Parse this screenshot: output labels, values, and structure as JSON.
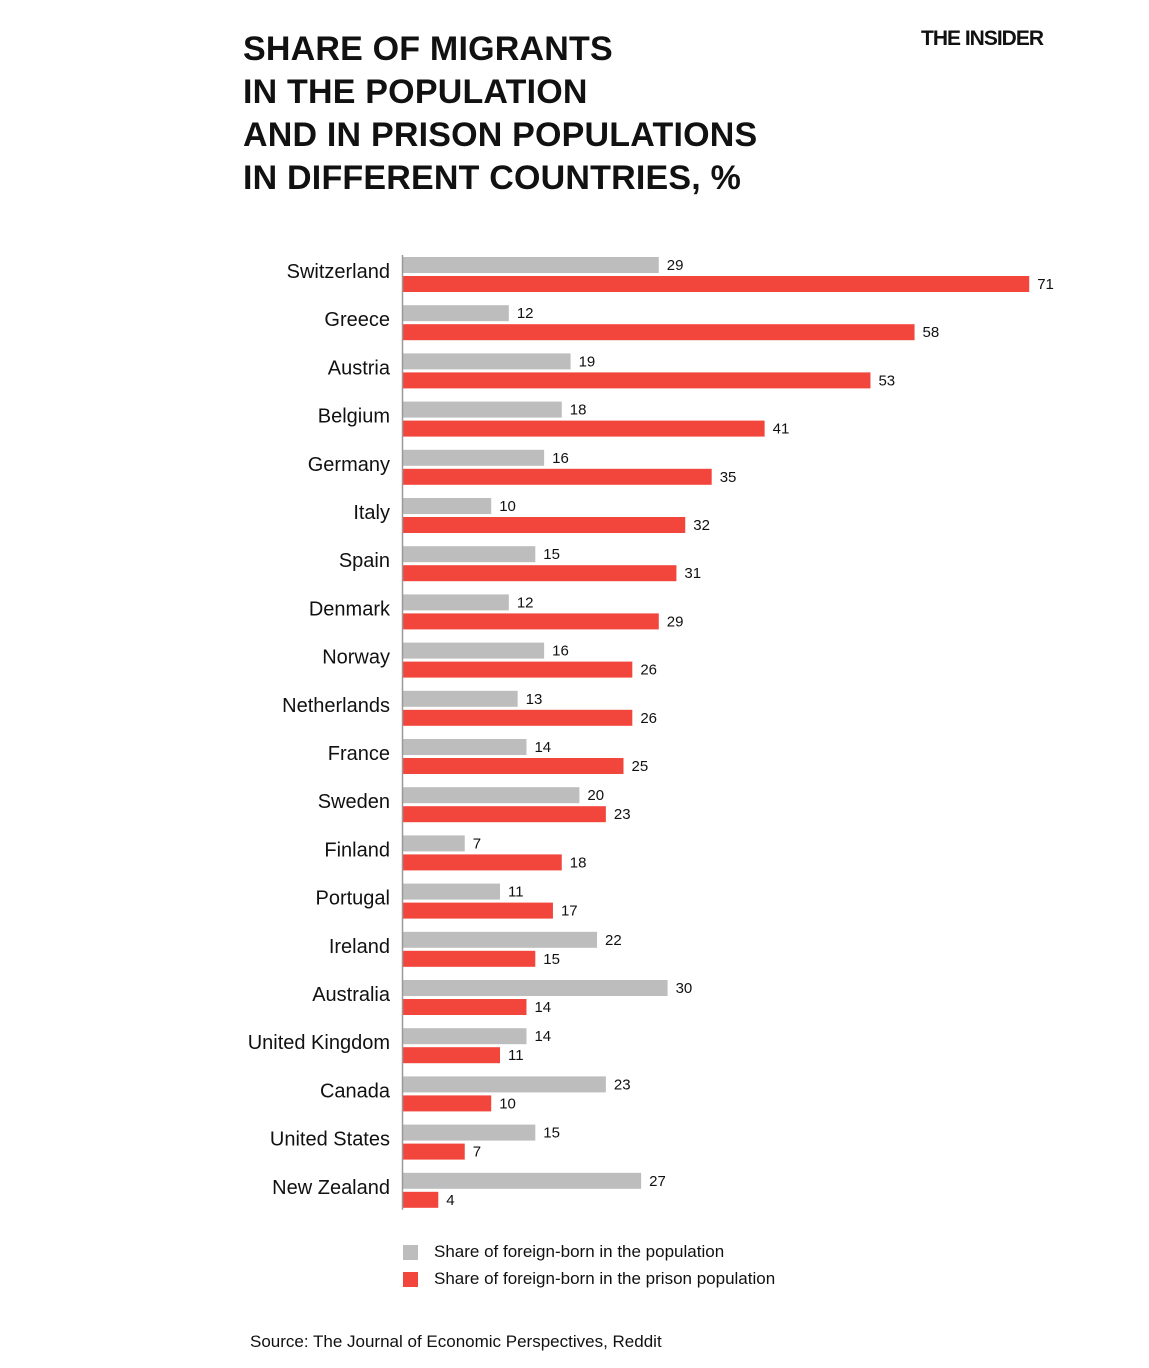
{
  "header": {
    "title": "SHARE OF MIGRANTS\nIN THE POPULATION\nAND IN PRISON POPULATIONS\nIN DIFFERENT COUNTRIES, %",
    "brand": "THE INSIDER"
  },
  "colors": {
    "population": "#bdbdbd",
    "prison": "#f2463c",
    "text": "#111111",
    "axis": "#999999"
  },
  "chart_data": {
    "type": "bar",
    "orientation": "horizontal",
    "title": "SHARE OF MIGRANTS IN THE POPULATION AND IN PRISON POPULATIONS IN DIFFERENT COUNTRIES, %",
    "categories": [
      "Switzerland",
      "Greece",
      "Austria",
      "Belgium",
      "Germany",
      "Italy",
      "Spain",
      "Denmark",
      "Norway",
      "Netherlands",
      "France",
      "Sweden",
      "Finland",
      "Portugal",
      "Ireland",
      "Australia",
      "United Kingdom",
      "Canada",
      "United States",
      "New Zealand"
    ],
    "series": [
      {
        "name": "Share of foreign-born in the population",
        "color": "#bdbdbd",
        "values": [
          29,
          12,
          19,
          18,
          16,
          10,
          15,
          12,
          16,
          13,
          14,
          20,
          7,
          11,
          22,
          30,
          14,
          23,
          15,
          27
        ]
      },
      {
        "name": "Share of foreign-born in the prison population",
        "color": "#f2463c",
        "values": [
          71,
          58,
          53,
          41,
          35,
          32,
          31,
          29,
          26,
          26,
          25,
          23,
          18,
          17,
          15,
          14,
          11,
          10,
          7,
          4
        ]
      }
    ],
    "xlim": [
      0,
      71
    ],
    "grid": false,
    "data_labels": true,
    "legend_position": "bottom"
  },
  "legend": {
    "items": [
      {
        "label": "Share of foreign-born in the population",
        "color": "#bdbdbd"
      },
      {
        "label": "Share of foreign-born in the prison population",
        "color": "#f2463c"
      }
    ]
  },
  "footer": {
    "source": "Source: The Journal of Economic Perspectives, Reddit"
  }
}
